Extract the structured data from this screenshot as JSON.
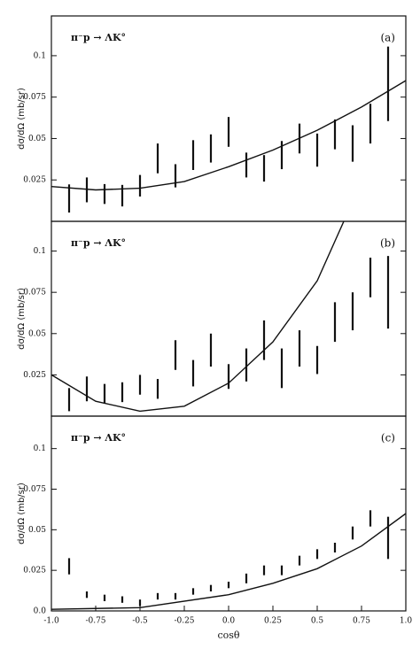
{
  "chart_data": [
    {
      "type": "errorbar",
      "label": "π⁻p → ΛK°",
      "panel": "(a)",
      "ylabel": "dσ/dΩ (mb/sr)",
      "xlim": [
        -1,
        1
      ],
      "ylim": [
        0,
        0.124
      ],
      "yticks": [
        0.025,
        0.05,
        0.075,
        0.1
      ],
      "x": [
        -0.9,
        -0.8,
        -0.7,
        -0.6,
        -0.5,
        -0.4,
        -0.3,
        -0.2,
        -0.1,
        0.0,
        0.1,
        0.2,
        0.3,
        0.4,
        0.5,
        0.6,
        0.7,
        0.8,
        0.9
      ],
      "values": [
        0.0138,
        0.019,
        0.0165,
        0.0155,
        0.0215,
        0.038,
        0.0275,
        0.04,
        0.044,
        0.054,
        0.034,
        0.032,
        0.04,
        0.05,
        0.043,
        0.0525,
        0.047,
        0.059,
        0.083
      ],
      "errors": [
        0.0085,
        0.0075,
        0.006,
        0.0065,
        0.0065,
        0.009,
        0.007,
        0.009,
        0.0085,
        0.009,
        0.0075,
        0.008,
        0.0085,
        0.009,
        0.01,
        0.009,
        0.011,
        0.012,
        0.0225
      ],
      "curve": {
        "x": [
          -1,
          -0.75,
          -0.5,
          -0.25,
          0,
          0.25,
          0.5,
          0.75,
          1
        ],
        "values": [
          0.021,
          0.019,
          0.02,
          0.024,
          0.033,
          0.043,
          0.055,
          0.069,
          0.085
        ]
      }
    },
    {
      "type": "errorbar",
      "label": "π⁻p → ΛK°",
      "panel": "(b)",
      "ylabel": "dσ/dΩ (mb/sr)",
      "xlim": [
        -1,
        1
      ],
      "ylim": [
        0,
        0.118
      ],
      "yticks": [
        0.025,
        0.05,
        0.075,
        0.1
      ],
      "x": [
        -0.9,
        -0.8,
        -0.7,
        -0.6,
        -0.5,
        -0.4,
        -0.3,
        -0.2,
        -0.1,
        0.0,
        0.1,
        0.2,
        0.3,
        0.4,
        0.5,
        0.6,
        0.7,
        0.8,
        0.9
      ],
      "values": [
        0.01,
        0.0165,
        0.0135,
        0.0145,
        0.019,
        0.0165,
        0.037,
        0.026,
        0.04,
        0.024,
        0.031,
        0.046,
        0.029,
        0.041,
        0.034,
        0.057,
        0.0635,
        0.084,
        0.075
      ],
      "errors": [
        0.007,
        0.0075,
        0.006,
        0.006,
        0.006,
        0.006,
        0.009,
        0.008,
        0.01,
        0.0075,
        0.01,
        0.012,
        0.012,
        0.011,
        0.0085,
        0.012,
        0.0115,
        0.012,
        0.022
      ],
      "curve": {
        "x": [
          -1,
          -0.75,
          -0.5,
          -0.25,
          0,
          0.25,
          0.5,
          0.65
        ],
        "values": [
          0.025,
          0.009,
          0.003,
          0.006,
          0.02,
          0.045,
          0.082,
          0.118
        ]
      }
    },
    {
      "type": "errorbar",
      "label": "π⁻p → ΛK°",
      "panel": "(c)",
      "ylabel": "dσ/dΩ (mb/sr)",
      "xlabel": "cosθ",
      "xlim": [
        -1,
        1
      ],
      "ylim": [
        0,
        0.12
      ],
      "yticks": [
        {
          "value": 0,
          "label": "0.0"
        },
        0.025,
        0.05,
        0.075,
        0.1
      ],
      "xticks": [
        {
          "value": -1,
          "label": "-1.0"
        },
        -0.75,
        -0.5,
        -0.25,
        {
          "value": 0,
          "label": "0.0"
        },
        0.25,
        0.5,
        0.75,
        {
          "value": 1,
          "label": "1.0"
        }
      ],
      "x": [
        -0.9,
        -0.8,
        -0.7,
        -0.6,
        -0.5,
        -0.4,
        -0.3,
        -0.2,
        -0.1,
        0.0,
        0.1,
        0.2,
        0.3,
        0.4,
        0.5,
        0.6,
        0.7,
        0.8,
        0.9
      ],
      "values": [
        0.0275,
        0.01,
        0.008,
        0.007,
        0.005,
        0.009,
        0.009,
        0.012,
        0.014,
        0.016,
        0.02,
        0.025,
        0.025,
        0.031,
        0.035,
        0.039,
        0.048,
        0.057,
        0.045
      ],
      "errors": [
        0.005,
        0.002,
        0.002,
        0.002,
        0.002,
        0.002,
        0.002,
        0.002,
        0.002,
        0.002,
        0.003,
        0.003,
        0.003,
        0.003,
        0.003,
        0.003,
        0.004,
        0.005,
        0.013
      ],
      "curve": {
        "x": [
          -1,
          -0.5,
          0,
          0.25,
          0.5,
          0.75,
          1
        ],
        "values": [
          0.001,
          0.002,
          0.01,
          0.017,
          0.026,
          0.04,
          0.06
        ]
      }
    }
  ]
}
